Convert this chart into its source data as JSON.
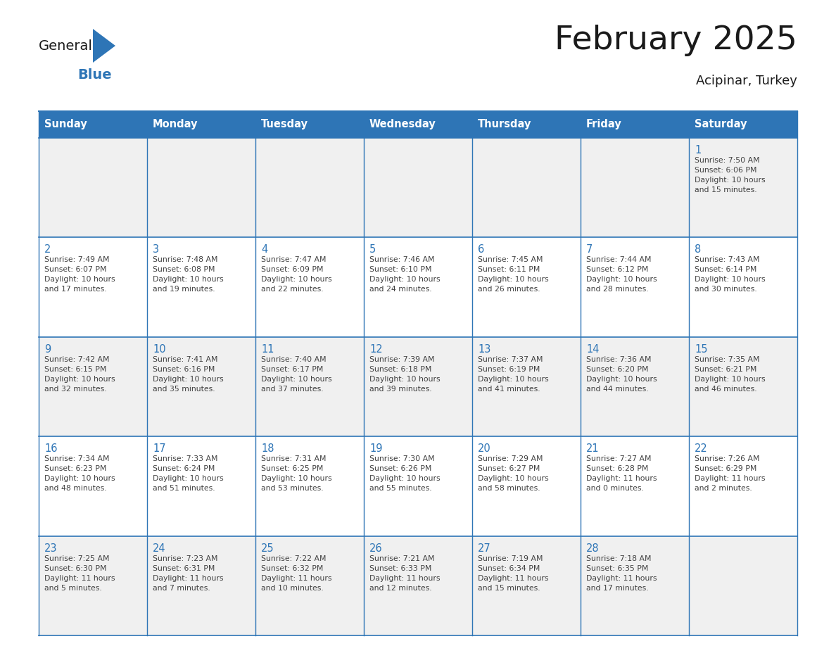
{
  "title": "February 2025",
  "subtitle": "Acipinar, Turkey",
  "days_of_week": [
    "Sunday",
    "Monday",
    "Tuesday",
    "Wednesday",
    "Thursday",
    "Friday",
    "Saturday"
  ],
  "header_bg_color": "#2E75B6",
  "header_text_color": "#FFFFFF",
  "cell_bg_white": "#FFFFFF",
  "cell_bg_gray": "#F0F0F0",
  "grid_color": "#2E75B6",
  "day_number_color": "#2E75B6",
  "info_text_color": "#404040",
  "logo_general_color": "#1A1A1A",
  "logo_blue_color": "#2E75B6",
  "title_color": "#1A1A1A",
  "weeks": [
    [
      {
        "day": null,
        "info": ""
      },
      {
        "day": null,
        "info": ""
      },
      {
        "day": null,
        "info": ""
      },
      {
        "day": null,
        "info": ""
      },
      {
        "day": null,
        "info": ""
      },
      {
        "day": null,
        "info": ""
      },
      {
        "day": 1,
        "info": "Sunrise: 7:50 AM\nSunset: 6:06 PM\nDaylight: 10 hours\nand 15 minutes."
      }
    ],
    [
      {
        "day": 2,
        "info": "Sunrise: 7:49 AM\nSunset: 6:07 PM\nDaylight: 10 hours\nand 17 minutes."
      },
      {
        "day": 3,
        "info": "Sunrise: 7:48 AM\nSunset: 6:08 PM\nDaylight: 10 hours\nand 19 minutes."
      },
      {
        "day": 4,
        "info": "Sunrise: 7:47 AM\nSunset: 6:09 PM\nDaylight: 10 hours\nand 22 minutes."
      },
      {
        "day": 5,
        "info": "Sunrise: 7:46 AM\nSunset: 6:10 PM\nDaylight: 10 hours\nand 24 minutes."
      },
      {
        "day": 6,
        "info": "Sunrise: 7:45 AM\nSunset: 6:11 PM\nDaylight: 10 hours\nand 26 minutes."
      },
      {
        "day": 7,
        "info": "Sunrise: 7:44 AM\nSunset: 6:12 PM\nDaylight: 10 hours\nand 28 minutes."
      },
      {
        "day": 8,
        "info": "Sunrise: 7:43 AM\nSunset: 6:14 PM\nDaylight: 10 hours\nand 30 minutes."
      }
    ],
    [
      {
        "day": 9,
        "info": "Sunrise: 7:42 AM\nSunset: 6:15 PM\nDaylight: 10 hours\nand 32 minutes."
      },
      {
        "day": 10,
        "info": "Sunrise: 7:41 AM\nSunset: 6:16 PM\nDaylight: 10 hours\nand 35 minutes."
      },
      {
        "day": 11,
        "info": "Sunrise: 7:40 AM\nSunset: 6:17 PM\nDaylight: 10 hours\nand 37 minutes."
      },
      {
        "day": 12,
        "info": "Sunrise: 7:39 AM\nSunset: 6:18 PM\nDaylight: 10 hours\nand 39 minutes."
      },
      {
        "day": 13,
        "info": "Sunrise: 7:37 AM\nSunset: 6:19 PM\nDaylight: 10 hours\nand 41 minutes."
      },
      {
        "day": 14,
        "info": "Sunrise: 7:36 AM\nSunset: 6:20 PM\nDaylight: 10 hours\nand 44 minutes."
      },
      {
        "day": 15,
        "info": "Sunrise: 7:35 AM\nSunset: 6:21 PM\nDaylight: 10 hours\nand 46 minutes."
      }
    ],
    [
      {
        "day": 16,
        "info": "Sunrise: 7:34 AM\nSunset: 6:23 PM\nDaylight: 10 hours\nand 48 minutes."
      },
      {
        "day": 17,
        "info": "Sunrise: 7:33 AM\nSunset: 6:24 PM\nDaylight: 10 hours\nand 51 minutes."
      },
      {
        "day": 18,
        "info": "Sunrise: 7:31 AM\nSunset: 6:25 PM\nDaylight: 10 hours\nand 53 minutes."
      },
      {
        "day": 19,
        "info": "Sunrise: 7:30 AM\nSunset: 6:26 PM\nDaylight: 10 hours\nand 55 minutes."
      },
      {
        "day": 20,
        "info": "Sunrise: 7:29 AM\nSunset: 6:27 PM\nDaylight: 10 hours\nand 58 minutes."
      },
      {
        "day": 21,
        "info": "Sunrise: 7:27 AM\nSunset: 6:28 PM\nDaylight: 11 hours\nand 0 minutes."
      },
      {
        "day": 22,
        "info": "Sunrise: 7:26 AM\nSunset: 6:29 PM\nDaylight: 11 hours\nand 2 minutes."
      }
    ],
    [
      {
        "day": 23,
        "info": "Sunrise: 7:25 AM\nSunset: 6:30 PM\nDaylight: 11 hours\nand 5 minutes."
      },
      {
        "day": 24,
        "info": "Sunrise: 7:23 AM\nSunset: 6:31 PM\nDaylight: 11 hours\nand 7 minutes."
      },
      {
        "day": 25,
        "info": "Sunrise: 7:22 AM\nSunset: 6:32 PM\nDaylight: 11 hours\nand 10 minutes."
      },
      {
        "day": 26,
        "info": "Sunrise: 7:21 AM\nSunset: 6:33 PM\nDaylight: 11 hours\nand 12 minutes."
      },
      {
        "day": 27,
        "info": "Sunrise: 7:19 AM\nSunset: 6:34 PM\nDaylight: 11 hours\nand 15 minutes."
      },
      {
        "day": 28,
        "info": "Sunrise: 7:18 AM\nSunset: 6:35 PM\nDaylight: 11 hours\nand 17 minutes."
      },
      {
        "day": null,
        "info": ""
      }
    ]
  ]
}
